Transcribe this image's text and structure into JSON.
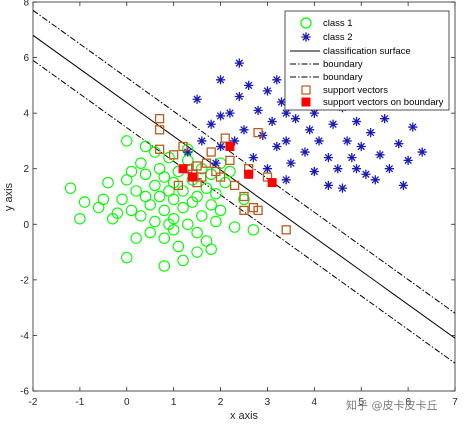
{
  "watermark": "知乎 @皮卡皮卡丘",
  "chart_data": {
    "type": "scatter",
    "xlabel": "x axis",
    "ylabel": "y axis",
    "xlim": [
      -2,
      7
    ],
    "ylim": [
      -6,
      8
    ],
    "xticks": [
      "-2",
      "-1",
      "0",
      "1",
      "2",
      "3",
      "4",
      "5",
      "6",
      "7"
    ],
    "yticks": [
      "-6",
      "-4",
      "-2",
      "0",
      "2",
      "4",
      "6",
      "8"
    ],
    "grid": false,
    "legend_position": "top-right",
    "colors": {
      "class1": "#00ff00",
      "class2": "#1a1ab8",
      "support_vector": "#b85c1f",
      "support_vector_boundary": "#ff0000",
      "line": "#000000"
    },
    "series": [
      {
        "name": "class 1",
        "marker": "circle",
        "points": [
          [
            -1.2,
            1.3
          ],
          [
            -0.9,
            0.8
          ],
          [
            -1.0,
            0.2
          ],
          [
            -0.4,
            1.5
          ],
          [
            -0.5,
            0.9
          ],
          [
            -0.6,
            0.6
          ],
          [
            -0.3,
            0.2
          ],
          [
            -0.1,
            0.9
          ],
          [
            0.0,
            1.6
          ],
          [
            0.0,
            -1.2
          ],
          [
            0.1,
            0.5
          ],
          [
            0.1,
            1.9
          ],
          [
            0.2,
            1.2
          ],
          [
            0.3,
            0.3
          ],
          [
            0.3,
            2.2
          ],
          [
            0.4,
            1.0
          ],
          [
            0.4,
            1.8
          ],
          [
            0.5,
            0.7
          ],
          [
            0.5,
            -0.3
          ],
          [
            0.6,
            1.4
          ],
          [
            0.6,
            0.1
          ],
          [
            0.7,
            2.0
          ],
          [
            0.7,
            1.0
          ],
          [
            0.8,
            0.5
          ],
          [
            0.8,
            1.7
          ],
          [
            0.8,
            -0.5
          ],
          [
            0.9,
            1.2
          ],
          [
            0.9,
            2.4
          ],
          [
            1.0,
            0.9
          ],
          [
            1.0,
            0.2
          ],
          [
            1.0,
            1.5
          ],
          [
            1.1,
            -0.8
          ],
          [
            1.1,
            1.9
          ],
          [
            1.2,
            0.6
          ],
          [
            1.2,
            1.2
          ],
          [
            1.3,
            0.0
          ],
          [
            1.3,
            2.3
          ],
          [
            1.4,
            0.8
          ],
          [
            1.4,
            1.6
          ],
          [
            1.5,
            -0.3
          ],
          [
            1.5,
            1.0
          ],
          [
            1.6,
            0.3
          ],
          [
            1.6,
            2.0
          ],
          [
            1.7,
            1.3
          ],
          [
            1.7,
            -0.6
          ],
          [
            1.8,
            0.7
          ],
          [
            1.8,
            1.8
          ],
          [
            1.9,
            0.1
          ],
          [
            1.9,
            1.1
          ],
          [
            2.0,
            2.2
          ],
          [
            2.0,
            0.5
          ],
          [
            2.1,
            1.5
          ],
          [
            1.2,
            -1.3
          ],
          [
            0.8,
            -1.5
          ],
          [
            1.5,
            -1.0
          ],
          [
            0.2,
            -0.5
          ],
          [
            0.0,
            3.0
          ],
          [
            0.6,
            2.6
          ],
          [
            2.3,
            -0.1
          ],
          [
            2.5,
            0.9
          ],
          [
            2.2,
            1.9
          ],
          [
            1.0,
            -0.2
          ],
          [
            0.4,
            2.8
          ],
          [
            1.8,
            -0.9
          ],
          [
            2.7,
            -0.2
          ],
          [
            1.3,
            2.7
          ],
          [
            0.9,
            0.0
          ],
          [
            -0.2,
            0.4
          ]
        ]
      },
      {
        "name": "class 2",
        "marker": "star",
        "points": [
          [
            1.5,
            4.5
          ],
          [
            1.8,
            3.6
          ],
          [
            2.0,
            5.2
          ],
          [
            2.2,
            4.0
          ],
          [
            2.3,
            3.0
          ],
          [
            2.4,
            4.6
          ],
          [
            2.5,
            3.4
          ],
          [
            2.6,
            5.0
          ],
          [
            2.7,
            2.4
          ],
          [
            2.8,
            4.1
          ],
          [
            2.9,
            3.2
          ],
          [
            3.0,
            4.8
          ],
          [
            3.0,
            2.0
          ],
          [
            3.1,
            3.7
          ],
          [
            3.2,
            2.8
          ],
          [
            3.3,
            4.4
          ],
          [
            3.4,
            3.0
          ],
          [
            3.5,
            5.4
          ],
          [
            3.5,
            2.2
          ],
          [
            3.6,
            3.8
          ],
          [
            3.7,
            4.6
          ],
          [
            3.8,
            2.6
          ],
          [
            3.9,
            3.4
          ],
          [
            4.0,
            4.0
          ],
          [
            4.0,
            1.9
          ],
          [
            4.1,
            3.0
          ],
          [
            4.2,
            4.8
          ],
          [
            4.3,
            2.4
          ],
          [
            4.4,
            3.6
          ],
          [
            4.5,
            2.0
          ],
          [
            4.6,
            4.2
          ],
          [
            4.7,
            3.0
          ],
          [
            4.8,
            2.4
          ],
          [
            4.9,
            3.7
          ],
          [
            5.0,
            2.8
          ],
          [
            5.1,
            1.8
          ],
          [
            5.2,
            3.3
          ],
          [
            5.4,
            2.5
          ],
          [
            5.5,
            3.8
          ],
          [
            5.6,
            2.0
          ],
          [
            5.8,
            2.9
          ],
          [
            6.0,
            2.3
          ],
          [
            6.1,
            3.5
          ],
          [
            6.3,
            2.6
          ],
          [
            2.4,
            5.8
          ],
          [
            1.6,
            3.0
          ],
          [
            1.3,
            2.6
          ],
          [
            2.0,
            2.8
          ],
          [
            3.4,
            1.6
          ],
          [
            4.3,
            1.4
          ],
          [
            2.6,
            1.8
          ],
          [
            3.8,
            5.0
          ],
          [
            4.6,
            1.3
          ],
          [
            5.3,
            1.6
          ],
          [
            2.0,
            3.9
          ],
          [
            1.9,
            2.2
          ],
          [
            3.2,
            5.2
          ],
          [
            5.9,
            1.4
          ],
          [
            3.4,
            4.0
          ],
          [
            4.9,
            2.0
          ]
        ]
      },
      {
        "name": "classification surface",
        "line": "solid",
        "endpoints": [
          [
            -2,
            6.8
          ],
          [
            7,
            -4.1
          ]
        ]
      },
      {
        "name": "boundary",
        "line": "dashdot",
        "endpoints": [
          [
            -2,
            7.7
          ],
          [
            7,
            -3.2
          ]
        ]
      },
      {
        "name": "boundary",
        "line": "dashdot",
        "endpoints": [
          [
            -2,
            5.9
          ],
          [
            7,
            -5.0
          ]
        ]
      },
      {
        "name": "support vectors",
        "marker": "open-square",
        "points": [
          [
            0.7,
            3.8
          ],
          [
            0.7,
            3.4
          ],
          [
            0.7,
            2.7
          ],
          [
            1.0,
            2.5
          ],
          [
            1.2,
            2.8
          ],
          [
            1.3,
            2.0
          ],
          [
            1.4,
            1.8
          ],
          [
            1.5,
            2.1
          ],
          [
            1.6,
            1.7
          ],
          [
            1.7,
            2.2
          ],
          [
            1.8,
            2.6
          ],
          [
            1.9,
            1.9
          ],
          [
            2.0,
            1.7
          ],
          [
            2.2,
            2.3
          ],
          [
            2.3,
            1.4
          ],
          [
            2.5,
            1.0
          ],
          [
            2.5,
            0.5
          ],
          [
            2.7,
            0.6
          ],
          [
            2.8,
            0.5
          ],
          [
            2.8,
            3.3
          ],
          [
            3.0,
            1.7
          ],
          [
            3.4,
            -0.2
          ],
          [
            1.1,
            1.4
          ],
          [
            2.1,
            3.1
          ],
          [
            1.5,
            1.5
          ],
          [
            2.6,
            2.0
          ]
        ]
      },
      {
        "name": "support vectors on boundary",
        "marker": "filled-square",
        "points": [
          [
            1.2,
            2.0
          ],
          [
            1.4,
            1.7
          ],
          [
            2.2,
            2.8
          ],
          [
            2.6,
            1.8
          ],
          [
            3.1,
            1.5
          ]
        ]
      }
    ]
  }
}
